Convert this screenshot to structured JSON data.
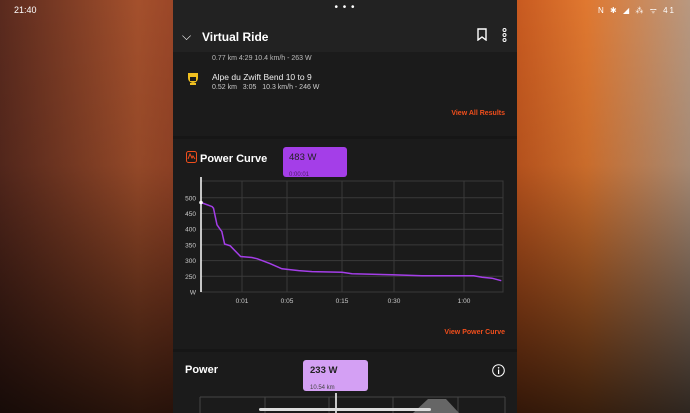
{
  "status_bar": {
    "time": "21:40",
    "right_icons": "N ✱ ◢ ⁂ ᯤ 41"
  },
  "header": {
    "title": "Virtual Ride"
  },
  "segments": {
    "partial_stats": "0.77 km   4:29   10.4 km/h - 263 W",
    "item": {
      "name": "Alpe du Zwift Bend 10 to 9",
      "distance": "0.52 km",
      "time": "3:05",
      "stats": "10.3 km/h - 246 W"
    },
    "view_all": "View All Results"
  },
  "power_curve": {
    "title": "Power Curve",
    "tooltip": {
      "value": "483 W",
      "time": "0:00:01"
    },
    "view_link": "View Power Curve",
    "accent": "#a43ee8",
    "link_color": "#f04e1c"
  },
  "power": {
    "title": "Power",
    "tooltip": {
      "value": "233 W",
      "distance": "10.54 km"
    }
  },
  "chart_data": {
    "type": "line",
    "xscale": "nonlinear (log-like) duration",
    "ylim": [
      200,
      550
    ],
    "yticks": [
      "500",
      "450",
      "400",
      "350",
      "300",
      "250",
      "W"
    ],
    "ytick_values": [
      500,
      450,
      400,
      350,
      300,
      250,
      200
    ],
    "xticks": [
      "0:01",
      "0:05",
      "0:15",
      "0:30",
      "1:00"
    ],
    "xtick_seconds": [
      60,
      300,
      900,
      1800,
      3600
    ],
    "series": [
      {
        "x_seconds": [
          1,
          17,
          19,
          24,
          29,
          31,
          35,
          43,
          58,
          113,
          140,
          167,
          211,
          273,
          428,
          573,
          900,
          1073,
          1765,
          2520,
          3633,
          3850,
          4065,
          4320,
          4560
        ],
        "values": [
          485,
          472,
          467,
          414,
          398,
          393,
          353,
          347,
          313,
          310,
          306,
          300,
          290,
          274,
          268,
          265,
          263,
          258,
          255,
          252,
          252,
          252,
          247,
          244,
          236
        ]
      }
    ]
  }
}
